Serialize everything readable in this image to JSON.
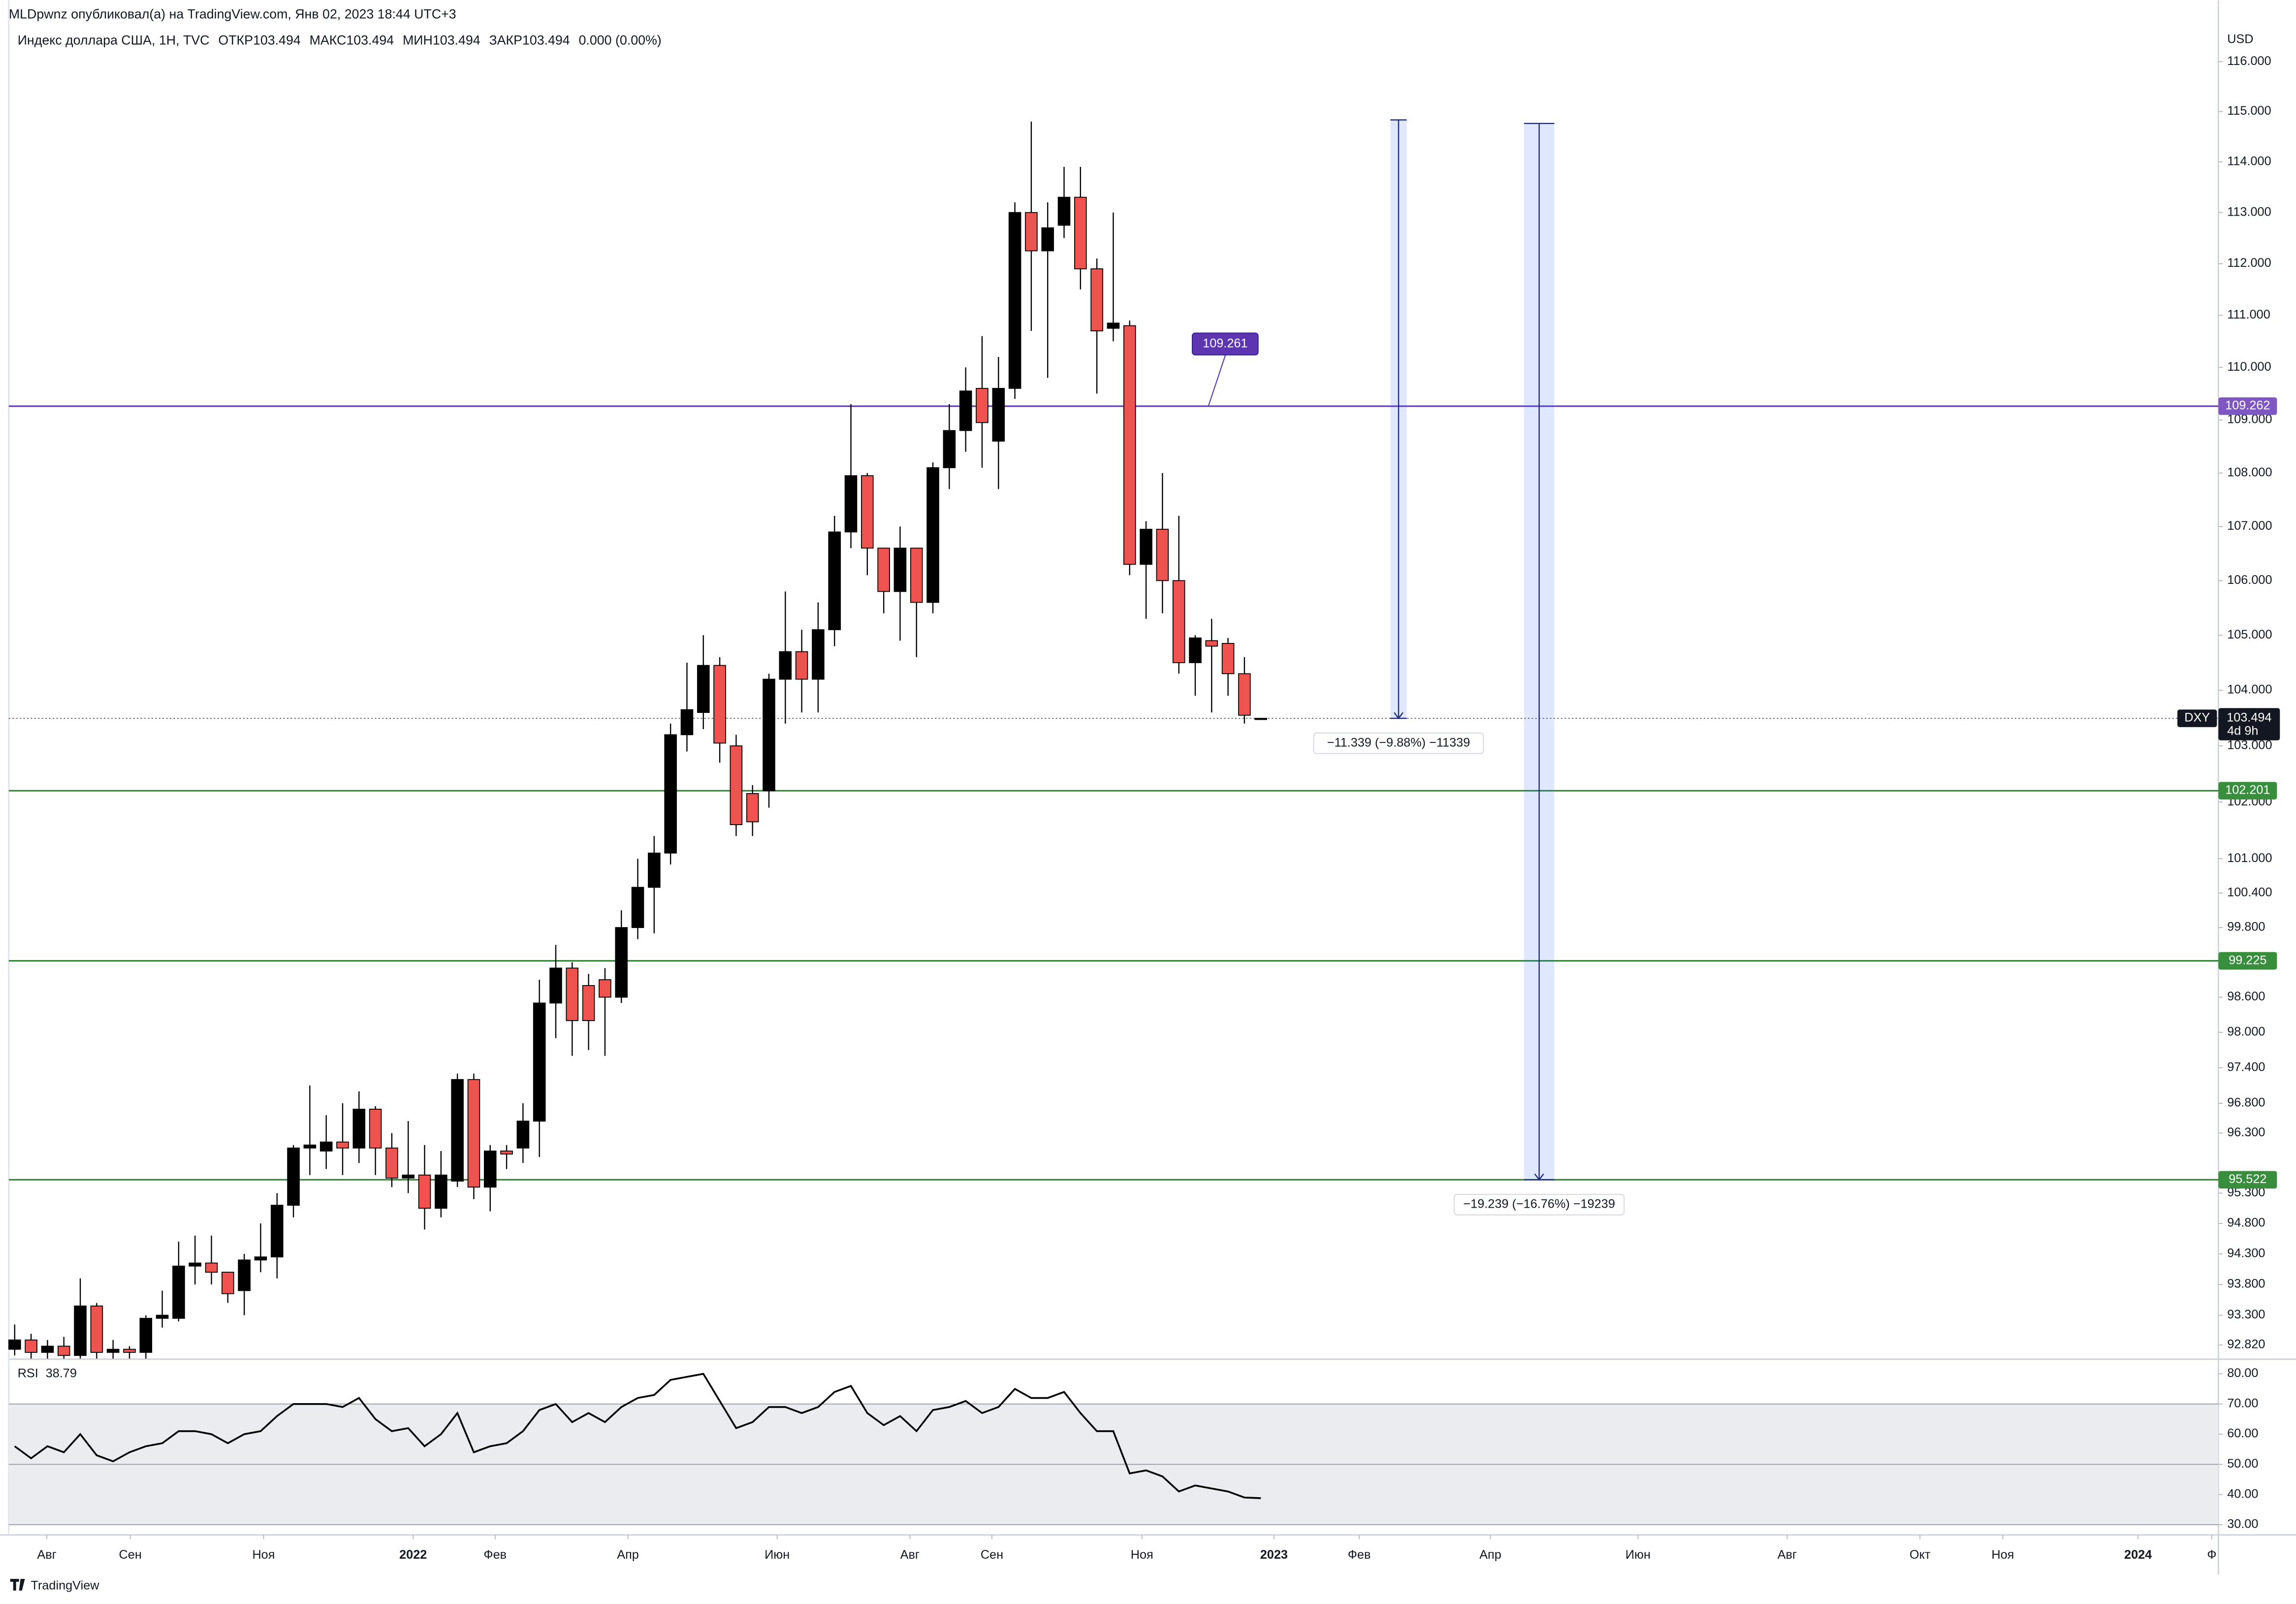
{
  "header": {
    "publisher": "MLDpwnz опубликовал(а) на TradingView.com, Янв 02, 2023 18:44 UTC+3",
    "brand": "TradingView"
  },
  "chart_data": [
    {
      "type": "candlestick",
      "title": "Индекс доллара США, 1Н, TVC",
      "ohlc_labels": [
        "ОТКР",
        "МАКС",
        "МИН",
        "ЗАКР"
      ],
      "change": "0.000 (0.00%)",
      "currency": "USD",
      "log_scale": true,
      "up_color": "#000000",
      "down_color": "#ef5350",
      "open": [
        92.75,
        92.9,
        92.7,
        92.8,
        92.65,
        93.45,
        92.7,
        92.75,
        92.7,
        93.25,
        93.25,
        94.1,
        94.15,
        94.0,
        93.7,
        94.2,
        94.25,
        95.1,
        96.05,
        96.0,
        96.15,
        96.05,
        96.7,
        96.05,
        95.55,
        95.6,
        95.05,
        95.5,
        97.2,
        95.4,
        96.0,
        96.05,
        96.5,
        98.5,
        99.1,
        98.8,
        98.9,
        98.6,
        99.8,
        100.5,
        101.1,
        103.2,
        103.6,
        104.45,
        103.0,
        102.15,
        102.2,
        104.2,
        104.7,
        104.2,
        105.1,
        106.9,
        107.95,
        106.6,
        105.8,
        106.6,
        105.6,
        108.1,
        108.8,
        109.6,
        108.6,
        109.6,
        113.0,
        112.25,
        112.75,
        113.3,
        111.9,
        110.75,
        110.8,
        106.3,
        106.95,
        106.0,
        104.5,
        104.9,
        104.85,
        104.3,
        103.494
      ],
      "high": [
        93.15,
        93.0,
        92.9,
        92.95,
        93.9,
        93.5,
        92.9,
        92.8,
        93.3,
        93.7,
        94.5,
        94.6,
        94.6,
        94.0,
        94.3,
        94.8,
        95.3,
        96.1,
        97.1,
        96.6,
        96.8,
        97.0,
        96.75,
        96.3,
        96.5,
        96.1,
        96.0,
        97.3,
        97.3,
        96.1,
        96.1,
        96.8,
        98.9,
        99.5,
        99.2,
        99.0,
        99.1,
        100.1,
        101.0,
        101.4,
        103.4,
        104.5,
        105.0,
        104.6,
        103.2,
        102.3,
        104.3,
        105.8,
        105.1,
        105.6,
        107.2,
        109.3,
        108.0,
        106.6,
        107.0,
        106.6,
        108.2,
        109.3,
        110.0,
        110.6,
        110.2,
        113.2,
        114.8,
        113.2,
        113.9,
        113.9,
        112.1,
        113.0,
        110.9,
        107.1,
        108.0,
        107.2,
        105.0,
        105.3,
        104.95,
        104.6,
        103.494
      ],
      "low": [
        92.65,
        92.6,
        92.6,
        92.6,
        92.6,
        92.6,
        92.6,
        92.6,
        92.6,
        93.1,
        93.2,
        93.8,
        93.8,
        93.5,
        93.3,
        94.0,
        93.9,
        94.9,
        95.6,
        95.7,
        95.6,
        95.8,
        95.6,
        95.4,
        95.3,
        94.7,
        94.9,
        95.4,
        95.2,
        95.0,
        95.7,
        95.8,
        95.9,
        97.9,
        97.6,
        97.7,
        97.6,
        98.5,
        99.6,
        99.7,
        100.9,
        102.9,
        103.3,
        102.7,
        101.4,
        101.4,
        101.9,
        103.4,
        103.6,
        103.6,
        104.8,
        106.6,
        106.1,
        105.4,
        104.9,
        104.6,
        105.4,
        107.7,
        108.4,
        108.1,
        107.7,
        109.4,
        110.7,
        109.8,
        112.5,
        111.5,
        109.5,
        110.5,
        106.1,
        105.3,
        105.4,
        104.3,
        103.9,
        103.6,
        103.9,
        103.4,
        103.494
      ],
      "close": [
        92.9,
        92.7,
        92.8,
        92.65,
        93.45,
        92.7,
        92.75,
        92.7,
        93.25,
        93.3,
        94.1,
        94.15,
        94.0,
        93.65,
        94.2,
        94.25,
        95.1,
        96.05,
        96.1,
        96.15,
        96.05,
        96.7,
        96.05,
        95.55,
        95.6,
        95.05,
        95.6,
        97.2,
        95.4,
        96.0,
        95.95,
        96.5,
        98.5,
        99.1,
        98.2,
        98.2,
        98.6,
        99.8,
        100.5,
        101.1,
        103.2,
        103.65,
        104.45,
        103.05,
        101.6,
        101.65,
        104.2,
        104.7,
        104.2,
        105.1,
        106.9,
        107.95,
        106.6,
        105.8,
        106.6,
        105.6,
        108.1,
        108.8,
        109.55,
        108.95,
        109.6,
        113.0,
        112.25,
        112.7,
        113.3,
        111.9,
        110.7,
        110.85,
        106.3,
        106.95,
        106.0,
        104.5,
        104.95,
        104.8,
        104.3,
        103.55,
        103.494
      ],
      "xlim": [
        -0.36,
        134.4
      ],
      "xticks": [
        {
          "value": 1.96,
          "label": "Авг"
        },
        {
          "value": 7.05,
          "label": "Сен"
        },
        {
          "value": 15.18,
          "label": "Ноя"
        },
        {
          "value": 24.3,
          "label": "2022"
        },
        {
          "value": 29.3,
          "label": "Фев"
        },
        {
          "value": 37.4,
          "label": "Апр"
        },
        {
          "value": 46.5,
          "label": "Июн"
        },
        {
          "value": 54.6,
          "label": "Авг"
        },
        {
          "value": 59.6,
          "label": "Сен"
        },
        {
          "value": 68.75,
          "label": "Ноя"
        },
        {
          "value": 76.8,
          "label": "2023"
        },
        {
          "value": 82,
          "label": "Фев"
        },
        {
          "value": 90,
          "label": "Апр"
        },
        {
          "value": 99,
          "label": "Июн"
        },
        {
          "value": 108.1,
          "label": "Авг"
        },
        {
          "value": 116.2,
          "label": "Окт"
        },
        {
          "value": 121.25,
          "label": "Ноя"
        },
        {
          "value": 129.5,
          "label": "2024"
        },
        {
          "value": 134,
          "label": "Ф"
        }
      ],
      "ylim": [
        92.59,
        116.65
      ],
      "yticks": [
        {
          "value": 116,
          "label": "116.000"
        },
        {
          "value": 115,
          "label": "115.000"
        },
        {
          "value": 114,
          "label": "114.000"
        },
        {
          "value": 113,
          "label": "113.000"
        },
        {
          "value": 112,
          "label": "112.000"
        },
        {
          "value": 111,
          "label": "111.000"
        },
        {
          "value": 110,
          "label": "110.000"
        },
        {
          "value": 109,
          "label": "109.000"
        },
        {
          "value": 108,
          "label": "108.000"
        },
        {
          "value": 107,
          "label": "107.000"
        },
        {
          "value": 106,
          "label": "106.000"
        },
        {
          "value": 105,
          "label": "105.000"
        },
        {
          "value": 104,
          "label": "104.000"
        },
        {
          "value": 103,
          "label": "103.000"
        },
        {
          "value": 102,
          "label": "102.000"
        },
        {
          "value": 101,
          "label": "101.000"
        },
        {
          "value": 100.4,
          "label": "100.400"
        },
        {
          "value": 99.8,
          "label": "99.800"
        },
        {
          "value": 98.6,
          "label": "98.600"
        },
        {
          "value": 98,
          "label": "98.000"
        },
        {
          "value": 97.4,
          "label": "97.400"
        },
        {
          "value": 96.8,
          "label": "96.800"
        },
        {
          "value": 96.3,
          "label": "96.300"
        },
        {
          "value": 95.3,
          "label": "95.300"
        },
        {
          "value": 94.8,
          "label": "94.800"
        },
        {
          "value": 94.3,
          "label": "94.300"
        },
        {
          "value": 93.8,
          "label": "93.800"
        },
        {
          "value": 93.3,
          "label": "93.300"
        },
        {
          "value": 92.82,
          "label": "92.820"
        }
      ],
      "hlines": [
        {
          "value": 109.262,
          "color": "#5e35b1",
          "label_color": "#7e57c2"
        },
        {
          "value": 102.201,
          "color": "#2e7d32",
          "label_color": "#388e3c"
        },
        {
          "value": 99.225,
          "color": "#2e7d32",
          "label_color": "#388e3c"
        },
        {
          "value": 95.522,
          "color": "#2e7d32",
          "label_color": "#388e3c"
        }
      ],
      "last_price": {
        "symbol": "DXY",
        "value": 103.494,
        "countdown": "4d 9h"
      },
      "callout": {
        "value": 109.261,
        "x": 72.8,
        "color": "#5e35b1"
      },
      "measures": [
        {
          "x": [
            83.9,
            84.9
          ],
          "from": 114.833,
          "to": 103.494,
          "label": "−11.339 (−9.88%) −11339"
        },
        {
          "x": [
            92.05,
            93.9
          ],
          "from": 114.761,
          "to": 95.522,
          "label": "−19.239 (−16.76%) −19239"
        }
      ]
    },
    {
      "type": "line",
      "name": "RSI",
      "color": "#000000",
      "values": [
        56,
        52,
        56,
        54,
        60,
        53,
        51,
        54,
        56,
        57,
        61,
        61,
        60,
        57,
        60,
        61,
        66,
        70,
        70,
        70,
        69,
        72,
        65,
        61,
        62,
        56,
        60,
        67,
        54,
        56,
        57,
        61,
        68,
        70,
        64,
        67,
        64,
        69,
        72,
        73,
        78,
        79,
        80,
        71,
        62,
        64,
        69,
        69,
        67,
        69,
        74,
        76,
        67,
        63,
        66,
        61,
        68,
        69,
        71,
        67,
        69,
        75,
        72,
        72,
        74,
        67,
        61,
        61,
        47,
        48,
        46,
        41,
        43,
        42,
        41,
        39,
        38.79
      ],
      "ylim": [
        26.6,
        84.85
      ],
      "yticks": [
        {
          "value": 80,
          "label": "80.00"
        },
        {
          "value": 70,
          "label": "70.00"
        },
        {
          "value": 60,
          "label": "60.00"
        },
        {
          "value": 50,
          "label": "50.00"
        },
        {
          "value": 40,
          "label": "40.00"
        },
        {
          "value": 30,
          "label": "30.00"
        }
      ],
      "levels": [
        70,
        50,
        30
      ]
    }
  ]
}
